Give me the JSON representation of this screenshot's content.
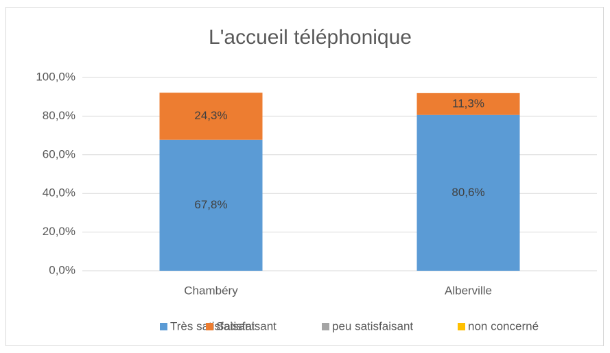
{
  "chart_data": {
    "type": "stacked_bar",
    "title": "L'accueil téléphonique",
    "categories": [
      "Chambéry",
      "Alberville"
    ],
    "series": [
      {
        "name": "Très satisfaisant",
        "color": "#5b9bd5",
        "values": [
          67.8,
          80.6
        ],
        "value_labels": [
          "67,8%",
          "80,6%"
        ]
      },
      {
        "name": "Satisfaisant",
        "color": "#ed7d31",
        "values": [
          24.3,
          11.3
        ],
        "value_labels": [
          "24,3%",
          "11,3%"
        ]
      },
      {
        "name": "peu satisfaisant",
        "color": "#a5a5a5",
        "values": [
          0,
          0
        ]
      },
      {
        "name": "non concerné",
        "color": "#ffc000",
        "values": [
          0,
          0
        ]
      }
    ],
    "ylim": [
      0,
      100
    ],
    "yticks": [
      {
        "value": 0,
        "label": "0,0%"
      },
      {
        "value": 20,
        "label": "20,0%"
      },
      {
        "value": 40,
        "label": "40,0%"
      },
      {
        "value": 60,
        "label": "60,0%"
      },
      {
        "value": 80,
        "label": "80,0%"
      },
      {
        "value": 100,
        "label": "100,0%"
      }
    ],
    "grid": true,
    "legend": "bottom"
  }
}
